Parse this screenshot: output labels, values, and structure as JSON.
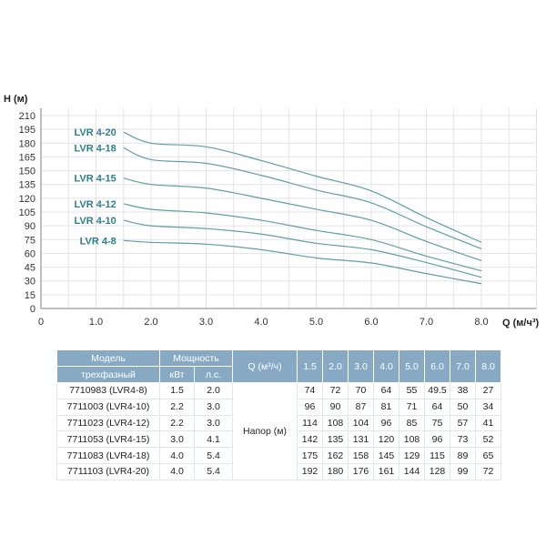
{
  "chart_data": {
    "type": "line",
    "xlabel": "Q (м/ч³)",
    "ylabel": "H (м)",
    "xlim": [
      0,
      9
    ],
    "ylim": [
      0,
      210
    ],
    "x_ticks": [
      "0",
      "1.0",
      "2.0",
      "3.0",
      "4.0",
      "5.0",
      "6.0",
      "7.0",
      "8.0"
    ],
    "y_ticks": [
      "0",
      "15",
      "30",
      "45",
      "60",
      "75",
      "90",
      "105",
      "120",
      "135",
      "150",
      "165",
      "180",
      "195",
      "210"
    ],
    "grid": true,
    "x": [
      1.5,
      2.0,
      3.0,
      4.0,
      5.0,
      6.0,
      7.0,
      8.0
    ],
    "series": [
      {
        "name": "LVR 4-20",
        "values": [
          192,
          180,
          176,
          161,
          144,
          128,
          99,
          72
        ]
      },
      {
        "name": "LVR 4-18",
        "values": [
          175,
          162,
          158,
          145,
          129,
          115,
          89,
          65
        ]
      },
      {
        "name": "LVR 4-15",
        "values": [
          142,
          135,
          131,
          120,
          108,
          96,
          73,
          52
        ]
      },
      {
        "name": "LVR 4-12",
        "values": [
          114,
          108,
          104,
          96,
          85,
          75,
          57,
          41
        ]
      },
      {
        "name": "LVR 4-10",
        "values": [
          96,
          90,
          87,
          81,
          71,
          64,
          50,
          34
        ]
      },
      {
        "name": "LVR 4-8",
        "values": [
          74,
          72,
          70,
          64,
          55,
          49.5,
          38,
          27
        ]
      }
    ],
    "colors": {
      "line": "#5f9ea5",
      "label": "#2d7f8c",
      "header": "#87a9c4"
    }
  },
  "table": {
    "h_model": "Модель",
    "h_type": "трехфазный",
    "h_power": "Мощность",
    "h_kw": "кВт",
    "h_hp": "л.с.",
    "h_q": "Q (м³/ч)",
    "q_values": [
      "1.5",
      "2.0",
      "3.0",
      "4.0",
      "5.0",
      "6.0",
      "7.0",
      "8.0"
    ],
    "head_label": "Напор (м)",
    "rows": [
      {
        "model": "7710983 (LVR4-8)",
        "kw": "1.5",
        "hp": "2.0",
        "h": [
          "74",
          "72",
          "70",
          "64",
          "55",
          "49.5",
          "38",
          "27"
        ]
      },
      {
        "model": "7711003 (LVR4-10)",
        "kw": "2.2",
        "hp": "3.0",
        "h": [
          "96",
          "90",
          "87",
          "81",
          "71",
          "64",
          "50",
          "34"
        ]
      },
      {
        "model": "7711023 (LVR4-12)",
        "kw": "2.2",
        "hp": "3.0",
        "h": [
          "114",
          "108",
          "104",
          "96",
          "85",
          "75",
          "57",
          "41"
        ]
      },
      {
        "model": "7711053 (LVR4-15)",
        "kw": "3.0",
        "hp": "4.1",
        "h": [
          "142",
          "135",
          "131",
          "120",
          "108",
          "96",
          "73",
          "52"
        ]
      },
      {
        "model": "7711083 (LVR4-18)",
        "kw": "4.0",
        "hp": "5.4",
        "h": [
          "175",
          "162",
          "158",
          "145",
          "129",
          "115",
          "89",
          "65"
        ]
      },
      {
        "model": "7711103 (LVR4-20)",
        "kw": "4.0",
        "hp": "5.4",
        "h": [
          "192",
          "180",
          "176",
          "161",
          "144",
          "128",
          "99",
          "72"
        ]
      }
    ]
  }
}
